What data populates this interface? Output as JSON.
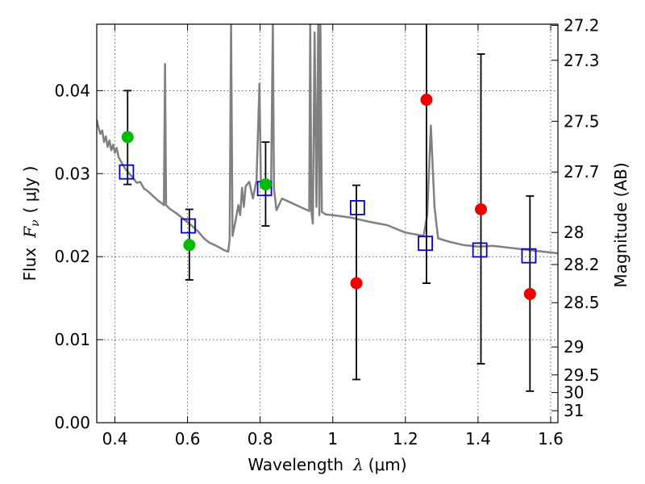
{
  "chart_data": {
    "type": "scatter",
    "xlabel_prefix": "Wavelength",
    "xlabel_symbol": "λ",
    "xlabel_unit": "(μm)",
    "ylabel_prefix": "Flux",
    "ylabel_symbol": "F",
    "ylabel_sub": "ν",
    "ylabel_unit": "( μJy )",
    "y2label": "Magnitude (AB)",
    "xlim": [
      0.35,
      1.62
    ],
    "ylim": [
      0.0,
      0.048
    ],
    "grid": true,
    "x_ticks": [
      0.4,
      0.6,
      0.8,
      1.0,
      1.2,
      1.4,
      1.6
    ],
    "x_tick_labels": [
      "0.4",
      "0.6",
      "0.8",
      "1",
      "1.2",
      "1.4",
      "1.6"
    ],
    "y_ticks": [
      0.0,
      0.01,
      0.02,
      0.03,
      0.04
    ],
    "y_tick_labels": [
      "0.00",
      "0.01",
      "0.02",
      "0.03",
      "0.04"
    ],
    "mag_ticks": [
      27.2,
      27.3,
      27.5,
      27.7,
      28,
      28.2,
      28.5,
      29,
      29.5,
      30,
      31
    ],
    "mag_tick_labels": [
      "27.2",
      "27.3",
      "27.5",
      "27.7",
      "28",
      "28.2",
      "28.5",
      "29",
      "29.5",
      "30",
      "31"
    ],
    "colors": {
      "model": "#808080",
      "square": "#0000cc",
      "green": "#00bb00",
      "red": "#ee0000",
      "error": "#000000"
    },
    "error_points": [
      {
        "x": 0.435,
        "y": 0.0344,
        "yerr_low": 0.0287,
        "yerr_high": 0.04,
        "color": "green"
      },
      {
        "x": 0.605,
        "y": 0.0214,
        "yerr_low": 0.0172,
        "yerr_high": 0.0257,
        "color": "green"
      },
      {
        "x": 0.815,
        "y": 0.0287,
        "yerr_low": 0.0237,
        "yerr_high": 0.0338,
        "color": "green"
      },
      {
        "x": 1.065,
        "y": 0.0168,
        "yerr_low": 0.0052,
        "yerr_high": 0.0286,
        "color": "red"
      },
      {
        "x": 1.258,
        "y": 0.0389,
        "yerr_low": 0.0168,
        "yerr_high": 0.048,
        "color": "red"
      },
      {
        "x": 1.408,
        "y": 0.0257,
        "yerr_low": 0.0071,
        "yerr_high": 0.0444,
        "color": "red"
      },
      {
        "x": 1.543,
        "y": 0.0155,
        "yerr_low": 0.0038,
        "yerr_high": 0.0273,
        "color": "red"
      }
    ],
    "model_points": [
      {
        "x": 0.432,
        "y": 0.0302
      },
      {
        "x": 0.602,
        "y": 0.0237
      },
      {
        "x": 0.812,
        "y": 0.0282
      },
      {
        "x": 1.068,
        "y": 0.0259
      },
      {
        "x": 1.255,
        "y": 0.0216
      },
      {
        "x": 1.405,
        "y": 0.0208
      },
      {
        "x": 1.54,
        "y": 0.0201
      }
    ],
    "model_spectrum": [
      [
        0.35,
        0.0365
      ],
      [
        0.355,
        0.0355
      ],
      [
        0.36,
        0.0348
      ],
      [
        0.365,
        0.0352
      ],
      [
        0.37,
        0.0338
      ],
      [
        0.375,
        0.0345
      ],
      [
        0.38,
        0.0332
      ],
      [
        0.385,
        0.034
      ],
      [
        0.39,
        0.0328
      ],
      [
        0.395,
        0.0335
      ],
      [
        0.4,
        0.0325
      ],
      [
        0.405,
        0.0331
      ],
      [
        0.41,
        0.032
      ],
      [
        0.415,
        0.0316
      ],
      [
        0.42,
        0.0312
      ],
      [
        0.43,
        0.0305
      ],
      [
        0.44,
        0.03
      ],
      [
        0.45,
        0.0295
      ],
      [
        0.46,
        0.0289
      ],
      [
        0.47,
        0.029
      ],
      [
        0.48,
        0.0282
      ],
      [
        0.49,
        0.0279
      ],
      [
        0.5,
        0.0275
      ],
      [
        0.51,
        0.0271
      ],
      [
        0.52,
        0.0267
      ],
      [
        0.53,
        0.0264
      ],
      [
        0.535,
        0.0262
      ],
      [
        0.538,
        0.0432
      ],
      [
        0.541,
        0.0262
      ],
      [
        0.55,
        0.0258
      ],
      [
        0.57,
        0.0252
      ],
      [
        0.59,
        0.0245
      ],
      [
        0.61,
        0.0238
      ],
      [
        0.63,
        0.023
      ],
      [
        0.645,
        0.0222
      ],
      [
        0.66,
        0.0217
      ],
      [
        0.68,
        0.0213
      ],
      [
        0.7,
        0.0208
      ],
      [
        0.712,
        0.0206
      ],
      [
        0.716,
        0.022
      ],
      [
        0.72,
        0.048
      ],
      [
        0.724,
        0.0225
      ],
      [
        0.73,
        0.0238
      ],
      [
        0.74,
        0.0262
      ],
      [
        0.745,
        0.025
      ],
      [
        0.75,
        0.0283
      ],
      [
        0.755,
        0.026
      ],
      [
        0.76,
        0.0285
      ],
      [
        0.77,
        0.029
      ],
      [
        0.78,
        0.027
      ],
      [
        0.79,
        0.0292
      ],
      [
        0.798,
        0.0408
      ],
      [
        0.802,
        0.0288
      ],
      [
        0.81,
        0.0282
      ],
      [
        0.82,
        0.0286
      ],
      [
        0.83,
        0.0283
      ],
      [
        0.835,
        0.048
      ],
      [
        0.838,
        0.0282
      ],
      [
        0.845,
        0.0256
      ],
      [
        0.86,
        0.027
      ],
      [
        0.88,
        0.0266
      ],
      [
        0.9,
        0.0262
      ],
      [
        0.92,
        0.0258
      ],
      [
        0.935,
        0.0255
      ],
      [
        0.938,
        0.048
      ],
      [
        0.941,
        0.0255
      ],
      [
        0.945,
        0.024
      ],
      [
        0.95,
        0.047
      ],
      [
        0.955,
        0.026
      ],
      [
        0.96,
        0.048
      ],
      [
        0.963,
        0.025
      ],
      [
        0.966,
        0.048
      ],
      [
        0.97,
        0.0254
      ],
      [
        0.98,
        0.0251
      ],
      [
        1.0,
        0.025
      ],
      [
        1.05,
        0.0247
      ],
      [
        1.1,
        0.0242
      ],
      [
        1.15,
        0.0238
      ],
      [
        1.2,
        0.0229
      ],
      [
        1.25,
        0.0225
      ],
      [
        1.26,
        0.025
      ],
      [
        1.27,
        0.0358
      ],
      [
        1.28,
        0.026
      ],
      [
        1.29,
        0.0222
      ],
      [
        1.32,
        0.0218
      ],
      [
        1.36,
        0.0214
      ],
      [
        1.4,
        0.0212
      ],
      [
        1.44,
        0.0213
      ],
      [
        1.48,
        0.0211
      ],
      [
        1.52,
        0.0209
      ],
      [
        1.56,
        0.0207
      ],
      [
        1.6,
        0.0205
      ],
      [
        1.62,
        0.0204
      ]
    ]
  }
}
